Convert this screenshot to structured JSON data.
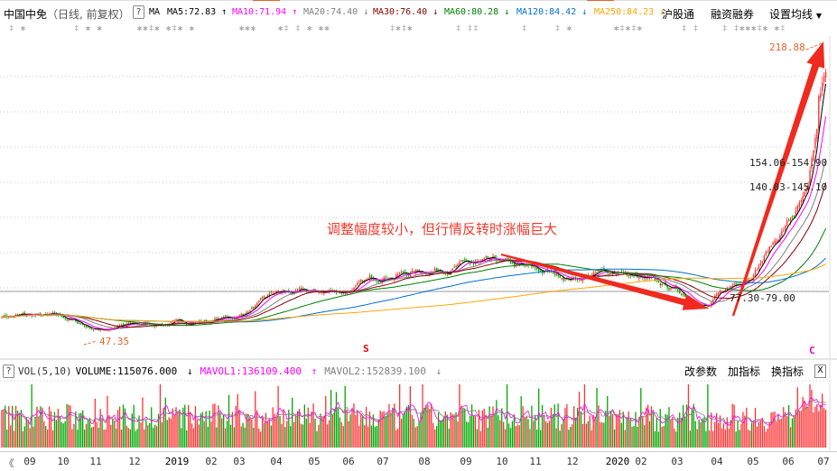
{
  "header": {
    "stock_name": "中国中免",
    "period": "（日线, 前复权）",
    "help": "?",
    "ma_label": "MA",
    "ma5": {
      "text": "MA5:72.83",
      "arrow": "↑",
      "color": "#000000"
    },
    "ma10": {
      "text": "MA10:71.94",
      "arrow": "↑",
      "color": "#ff00ff"
    },
    "ma20": {
      "text": "MA20:74.40",
      "arrow": "↓",
      "color": "#808080"
    },
    "ma30": {
      "text": "MA30:76.40",
      "arrow": "↓",
      "color": "#8b0000"
    },
    "ma60": {
      "text": "MA60:80.28",
      "arrow": "↓",
      "color": "#008000"
    },
    "ma120": {
      "text": "MA120:84.42",
      "arrow": "↓",
      "color": "#0070d0"
    },
    "ma250": {
      "text": "MA250:84.23",
      "arrow": "↓",
      "color": "#ffa500"
    },
    "buttons": [
      "沪股通",
      "融资融券",
      "设置均线"
    ]
  },
  "annotation": "调整幅度较小，但行情反转时涨幅巨大",
  "price_labels": {
    "high": "218.88",
    "low": "47.35",
    "range1": "154.06-154.90",
    "range2": "140.03-145.10",
    "range3": "77.30-79.00"
  },
  "markers": {
    "s": "S",
    "c": "C"
  },
  "volume": {
    "help": "?",
    "title": "VOL(5,10)",
    "volume": "VOLUME:115076.000",
    "volume_arrow": "↓",
    "mavol1": "MAVOL1:136109.400",
    "mavol1_arrow": "↑",
    "mavol2": "MAVOL2:152839.100",
    "mavol2_arrow": "↓",
    "buttons": [
      "改参数",
      "加指标",
      "换指标"
    ],
    "close": "X"
  },
  "xaxis": {
    "back": "《",
    "labels": [
      "09",
      "10",
      "11",
      "12",
      "2019",
      "02",
      "03",
      "04",
      "05",
      "06",
      "07",
      "08",
      "09",
      "10",
      "11",
      "12",
      "2020",
      "02",
      "03",
      "04",
      "05",
      "06",
      "07"
    ]
  },
  "colors": {
    "up": "#ff3232",
    "down": "#00a800",
    "arrow": "#f02a1e",
    "grid": "#c8c8c8"
  },
  "chart_data": {
    "type": "candlestick",
    "scale": "linear",
    "ylim": [
      47.35,
      218.88
    ],
    "grid": true,
    "months": [
      "2018-09",
      "2018-10",
      "2018-11",
      "2018-12",
      "2019-01",
      "2019-02",
      "2019-03",
      "2019-04",
      "2019-05",
      "2019-06",
      "2019-07",
      "2019-08",
      "2019-09",
      "2019-10",
      "2019-11",
      "2019-12",
      "2020-01",
      "2020-02",
      "2020-03",
      "2020-04",
      "2020-05",
      "2020-06",
      "2020-07"
    ],
    "approx_close": [
      61.9,
      60.9,
      54.1,
      56.7,
      57.7,
      59.3,
      61.9,
      74.9,
      74.9,
      76.5,
      85.3,
      87.9,
      91.5,
      91.5,
      87.9,
      83.7,
      87.9,
      82.7,
      76.5,
      72.3,
      87.9,
      106,
      194.5
    ],
    "min_low": 47.35,
    "max_high": 218.88,
    "moving_averages": [
      5,
      10,
      20,
      30,
      60,
      120,
      250
    ]
  }
}
